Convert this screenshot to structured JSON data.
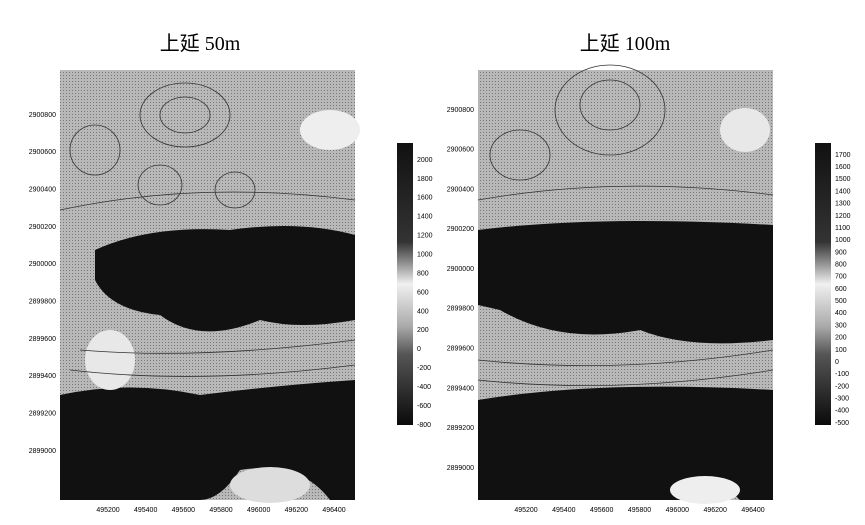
{
  "panels": [
    {
      "title": "上延 50m",
      "yticks": [
        "2900800",
        "2900600",
        "2900400",
        "2900200",
        "2900000",
        "2899800",
        "2899600",
        "2899400",
        "2899200",
        "2899000"
      ],
      "xticks": [
        "495200",
        "495400",
        "495600",
        "495800",
        "496000",
        "496200",
        "496400"
      ],
      "colorbar": [
        "2000",
        "1800",
        "1600",
        "1400",
        "1200",
        "1000",
        "800",
        "600",
        "400",
        "200",
        "0",
        "-200",
        "-400",
        "-600",
        "-800"
      ]
    },
    {
      "title": "上延 100m",
      "yticks": [
        "2900800",
        "2900600",
        "2900400",
        "2900200",
        "2900000",
        "2899800",
        "2899600",
        "2899400",
        "2899200",
        "2899000"
      ],
      "xticks": [
        "495200",
        "495400",
        "495600",
        "495800",
        "496000",
        "496200",
        "496400"
      ],
      "colorbar": [
        "1700",
        "1600",
        "1500",
        "1400",
        "1300",
        "1200",
        "1100",
        "1000",
        "900",
        "800",
        "700",
        "600",
        "500",
        "400",
        "300",
        "200",
        "100",
        "0",
        "-100",
        "-200",
        "-300",
        "-400",
        "-500"
      ]
    }
  ]
}
